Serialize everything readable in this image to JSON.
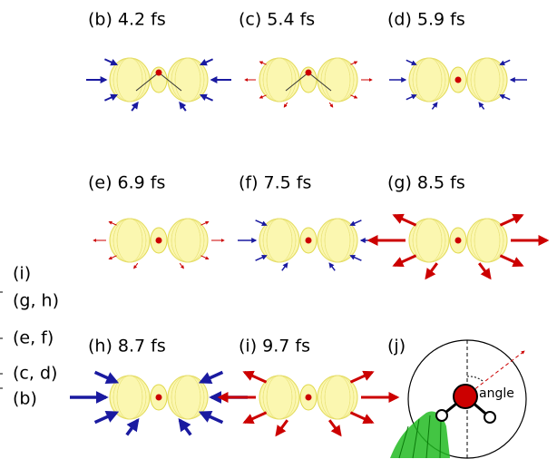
{
  "panels": [
    {
      "label": "(b) 4.2 fs"
    },
    {
      "label": "(c) 5.4 fs"
    },
    {
      "label": "(d) 5.9 fs"
    },
    {
      "label": "(e) 6.9 fs"
    },
    {
      "label": "(f) 7.5 fs"
    },
    {
      "label": "(g) 8.5 fs"
    },
    {
      "label": "(h) 8.7 fs"
    },
    {
      "label": "(i) 9.7 fs"
    }
  ],
  "inset": {
    "label": "(j)",
    "angle_label": "angle"
  },
  "side_labels": [
    "(i)",
    "(g, h)",
    "(e, f)",
    "(c, d)",
    "(b)"
  ]
}
